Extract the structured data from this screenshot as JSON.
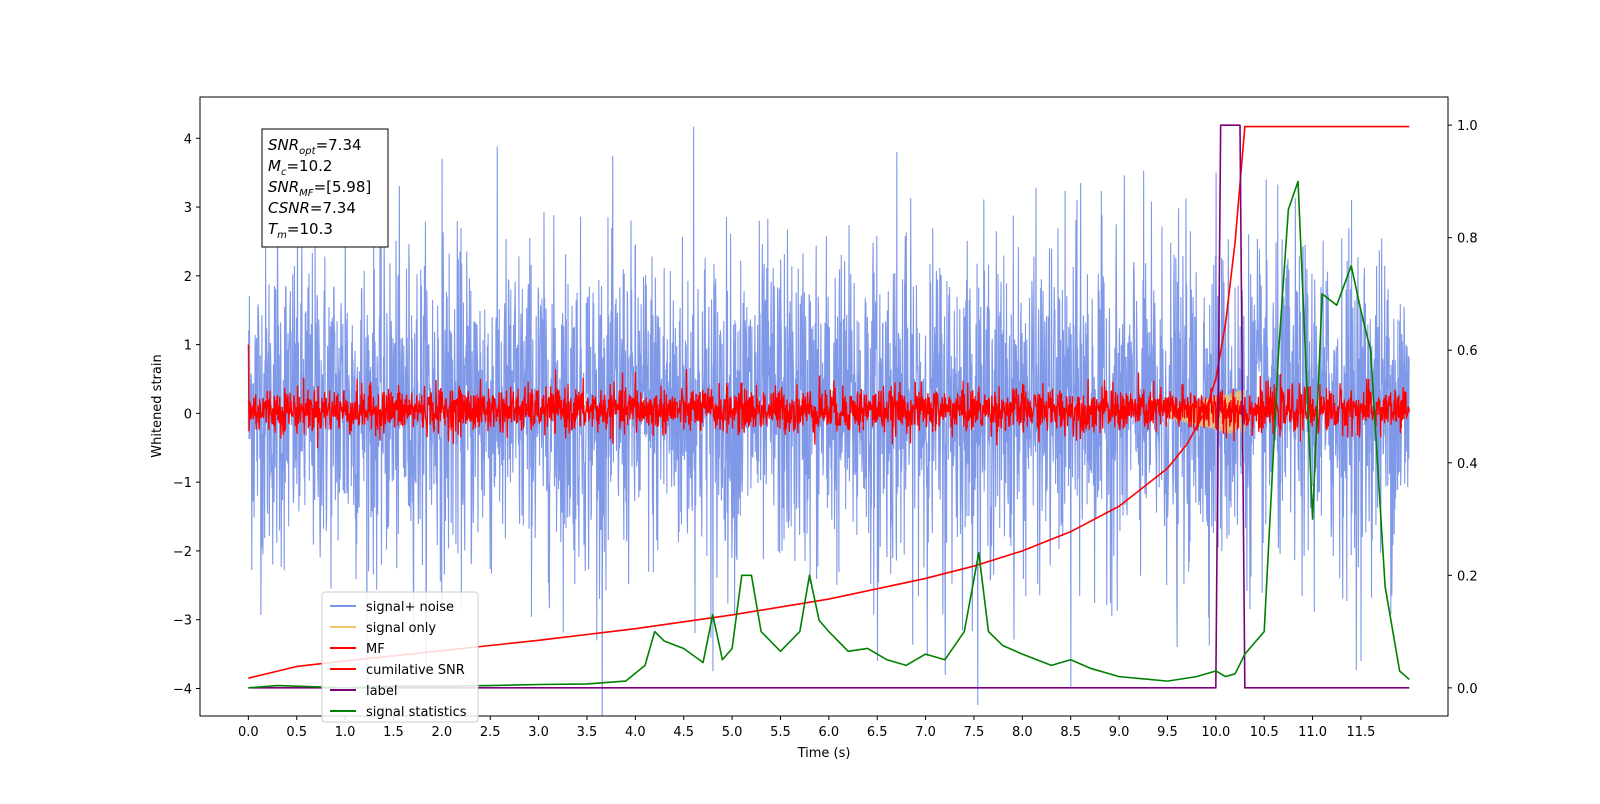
{
  "chart_data": {
    "type": "line",
    "title": "",
    "xlabel": "Time (s)",
    "ylabel": "Whitened strain",
    "xlim": [
      -0.5,
      12.4
    ],
    "ylim": [
      -4.4,
      4.6
    ],
    "y2lim": [
      -0.05,
      1.05
    ],
    "x_ticks": [
      0.0,
      0.5,
      1.0,
      1.5,
      2.0,
      2.5,
      3.0,
      3.5,
      4.0,
      4.5,
      5.0,
      5.5,
      6.0,
      6.5,
      7.0,
      7.5,
      8.0,
      8.5,
      9.0,
      9.5,
      10.0,
      10.5,
      11.0,
      11.5
    ],
    "x_tick_labels": [
      "0.0",
      "0.5",
      "1.0",
      "1.5",
      "2.0",
      "2.5",
      "3.0",
      "3.5",
      "4.0",
      "4.5",
      "5.0",
      "5.5",
      "6.0",
      "6.5",
      "7.0",
      "7.5",
      "8.0",
      "8.5",
      "9.0",
      "9.5",
      "10.0",
      "10.5",
      "11.0",
      "11.5"
    ],
    "y_ticks": [
      -4,
      -3,
      -2,
      -1,
      0,
      1,
      2,
      3,
      4
    ],
    "y_tick_labels": [
      "−4",
      "−3",
      "−2",
      "−1",
      "0",
      "1",
      "2",
      "3",
      "4"
    ],
    "y2_ticks": [
      0.0,
      0.2,
      0.4,
      0.6,
      0.8,
      1.0
    ],
    "y2_tick_labels": [
      "0.0",
      "0.2",
      "0.4",
      "0.6",
      "0.8",
      "1.0"
    ],
    "grid": false,
    "legend_position": "lower-left",
    "colors": {
      "signal_noise": "#7992e7",
      "signal_only": "#f5c36a",
      "mf": "#ff0000",
      "cumulative_snr": "#ff0000",
      "label": "#7b007b",
      "signal_statistics": "#008000"
    },
    "series": [
      {
        "name": "signal+ noise",
        "axis": "left",
        "color": "#7992e7",
        "style": "noise",
        "x_range": [
          0.0,
          12.0
        ],
        "mean": -0.1,
        "band": [
          -2.0,
          2.2
        ],
        "extremes": [
          {
            "x": 0.3,
            "y": 3.0
          },
          {
            "x": 1.0,
            "y": 3.1
          },
          {
            "x": 2.0,
            "y": 3.7
          },
          {
            "x": 4.6,
            "y": 4.17
          },
          {
            "x": 6.7,
            "y": 3.8
          },
          {
            "x": 8.6,
            "y": 3.35
          },
          {
            "x": 10.0,
            "y": 3.5
          },
          {
            "x": 11.4,
            "y": 3.1
          },
          {
            "x": 3.6,
            "y": -3.3
          },
          {
            "x": 4.8,
            "y": -3.75
          },
          {
            "x": 6.5,
            "y": -3.6
          },
          {
            "x": 7.2,
            "y": -3.8
          },
          {
            "x": 8.5,
            "y": -3.98
          },
          {
            "x": 9.6,
            "y": -3.4
          },
          {
            "x": 11.5,
            "y": -3.6
          }
        ]
      },
      {
        "name": "signal only",
        "axis": "left",
        "color": "#f5c36a",
        "style": "chirp",
        "x_range": [
          9.5,
          10.3
        ],
        "amplitude": 0.35
      },
      {
        "name": "MF",
        "axis": "left",
        "color": "#ff0000",
        "style": "noise",
        "x_range": [
          0.0,
          12.0
        ],
        "mean": 0.0,
        "band": [
          -0.25,
          0.35
        ],
        "extremes": [
          {
            "x": 0.0,
            "y": 1.0
          },
          {
            "x": 4.0,
            "y": 0.6
          },
          {
            "x": 5.9,
            "y": 0.55
          },
          {
            "x": 12.0,
            "y": 0.7
          }
        ]
      },
      {
        "name": "cumilative SNR",
        "axis": "left",
        "color": "#ff0000",
        "style": "line",
        "x": [
          0.0,
          0.5,
          1.0,
          2.0,
          3.0,
          4.0,
          5.0,
          6.0,
          7.0,
          7.5,
          8.0,
          8.5,
          9.0,
          9.5,
          9.7,
          9.9,
          10.0,
          10.1,
          10.2,
          10.3,
          10.5,
          11.0,
          11.5,
          12.0
        ],
        "y": [
          -3.85,
          -3.68,
          -3.6,
          -3.45,
          -3.3,
          -3.13,
          -2.93,
          -2.7,
          -2.4,
          -2.22,
          -2.0,
          -1.72,
          -1.35,
          -0.8,
          -0.45,
          0.05,
          0.5,
          1.3,
          2.5,
          4.17,
          4.17,
          4.17,
          4.17,
          4.17
        ]
      },
      {
        "name": "label",
        "axis": "right",
        "color": "#7b007b",
        "style": "step",
        "x": [
          0.0,
          10.0,
          10.05,
          10.25,
          10.3,
          12.0
        ],
        "y": [
          0.0,
          0.0,
          1.0,
          1.0,
          0.0,
          0.0
        ]
      },
      {
        "name": "signal statistics",
        "axis": "right",
        "color": "#008000",
        "style": "line",
        "x": [
          0.0,
          0.3,
          1.0,
          1.5,
          2.0,
          2.5,
          3.0,
          3.5,
          3.9,
          4.1,
          4.2,
          4.3,
          4.5,
          4.7,
          4.8,
          4.9,
          5.0,
          5.1,
          5.2,
          5.3,
          5.5,
          5.7,
          5.8,
          5.9,
          6.0,
          6.2,
          6.4,
          6.6,
          6.8,
          7.0,
          7.2,
          7.4,
          7.55,
          7.65,
          7.8,
          8.0,
          8.3,
          8.5,
          8.7,
          9.0,
          9.5,
          9.8,
          10.0,
          10.1,
          10.2,
          10.3,
          10.5,
          10.65,
          10.75,
          10.85,
          11.0,
          11.1,
          11.25,
          11.4,
          11.5,
          11.6,
          11.75,
          11.9,
          12.0
        ],
        "y": [
          0.0,
          0.004,
          0.0,
          0.003,
          0.003,
          0.004,
          0.006,
          0.007,
          0.012,
          0.04,
          0.1,
          0.083,
          0.07,
          0.045,
          0.13,
          0.05,
          0.07,
          0.2,
          0.2,
          0.1,
          0.065,
          0.1,
          0.2,
          0.12,
          0.1,
          0.065,
          0.07,
          0.05,
          0.04,
          0.06,
          0.05,
          0.1,
          0.24,
          0.1,
          0.075,
          0.06,
          0.04,
          0.05,
          0.035,
          0.02,
          0.012,
          0.02,
          0.03,
          0.02,
          0.025,
          0.06,
          0.1,
          0.6,
          0.85,
          0.9,
          0.3,
          0.7,
          0.68,
          0.75,
          0.67,
          0.6,
          0.18,
          0.03,
          0.015
        ]
      }
    ],
    "info_box": [
      {
        "sym": "SNR",
        "sub": "opt",
        "val": "=7.34"
      },
      {
        "sym": "M",
        "sub": "c",
        "val": "=10.2"
      },
      {
        "sym": "SNR",
        "sub": "MF",
        "val": "=[5.98]"
      },
      {
        "sym": "CSNR",
        "sub": "",
        "val": "=7.34"
      },
      {
        "sym": "T",
        "sub": "m",
        "val": "=10.3"
      }
    ],
    "legend": [
      "signal+ noise",
      "signal only",
      "MF",
      "cumilative SNR",
      "label",
      "signal statistics"
    ]
  }
}
